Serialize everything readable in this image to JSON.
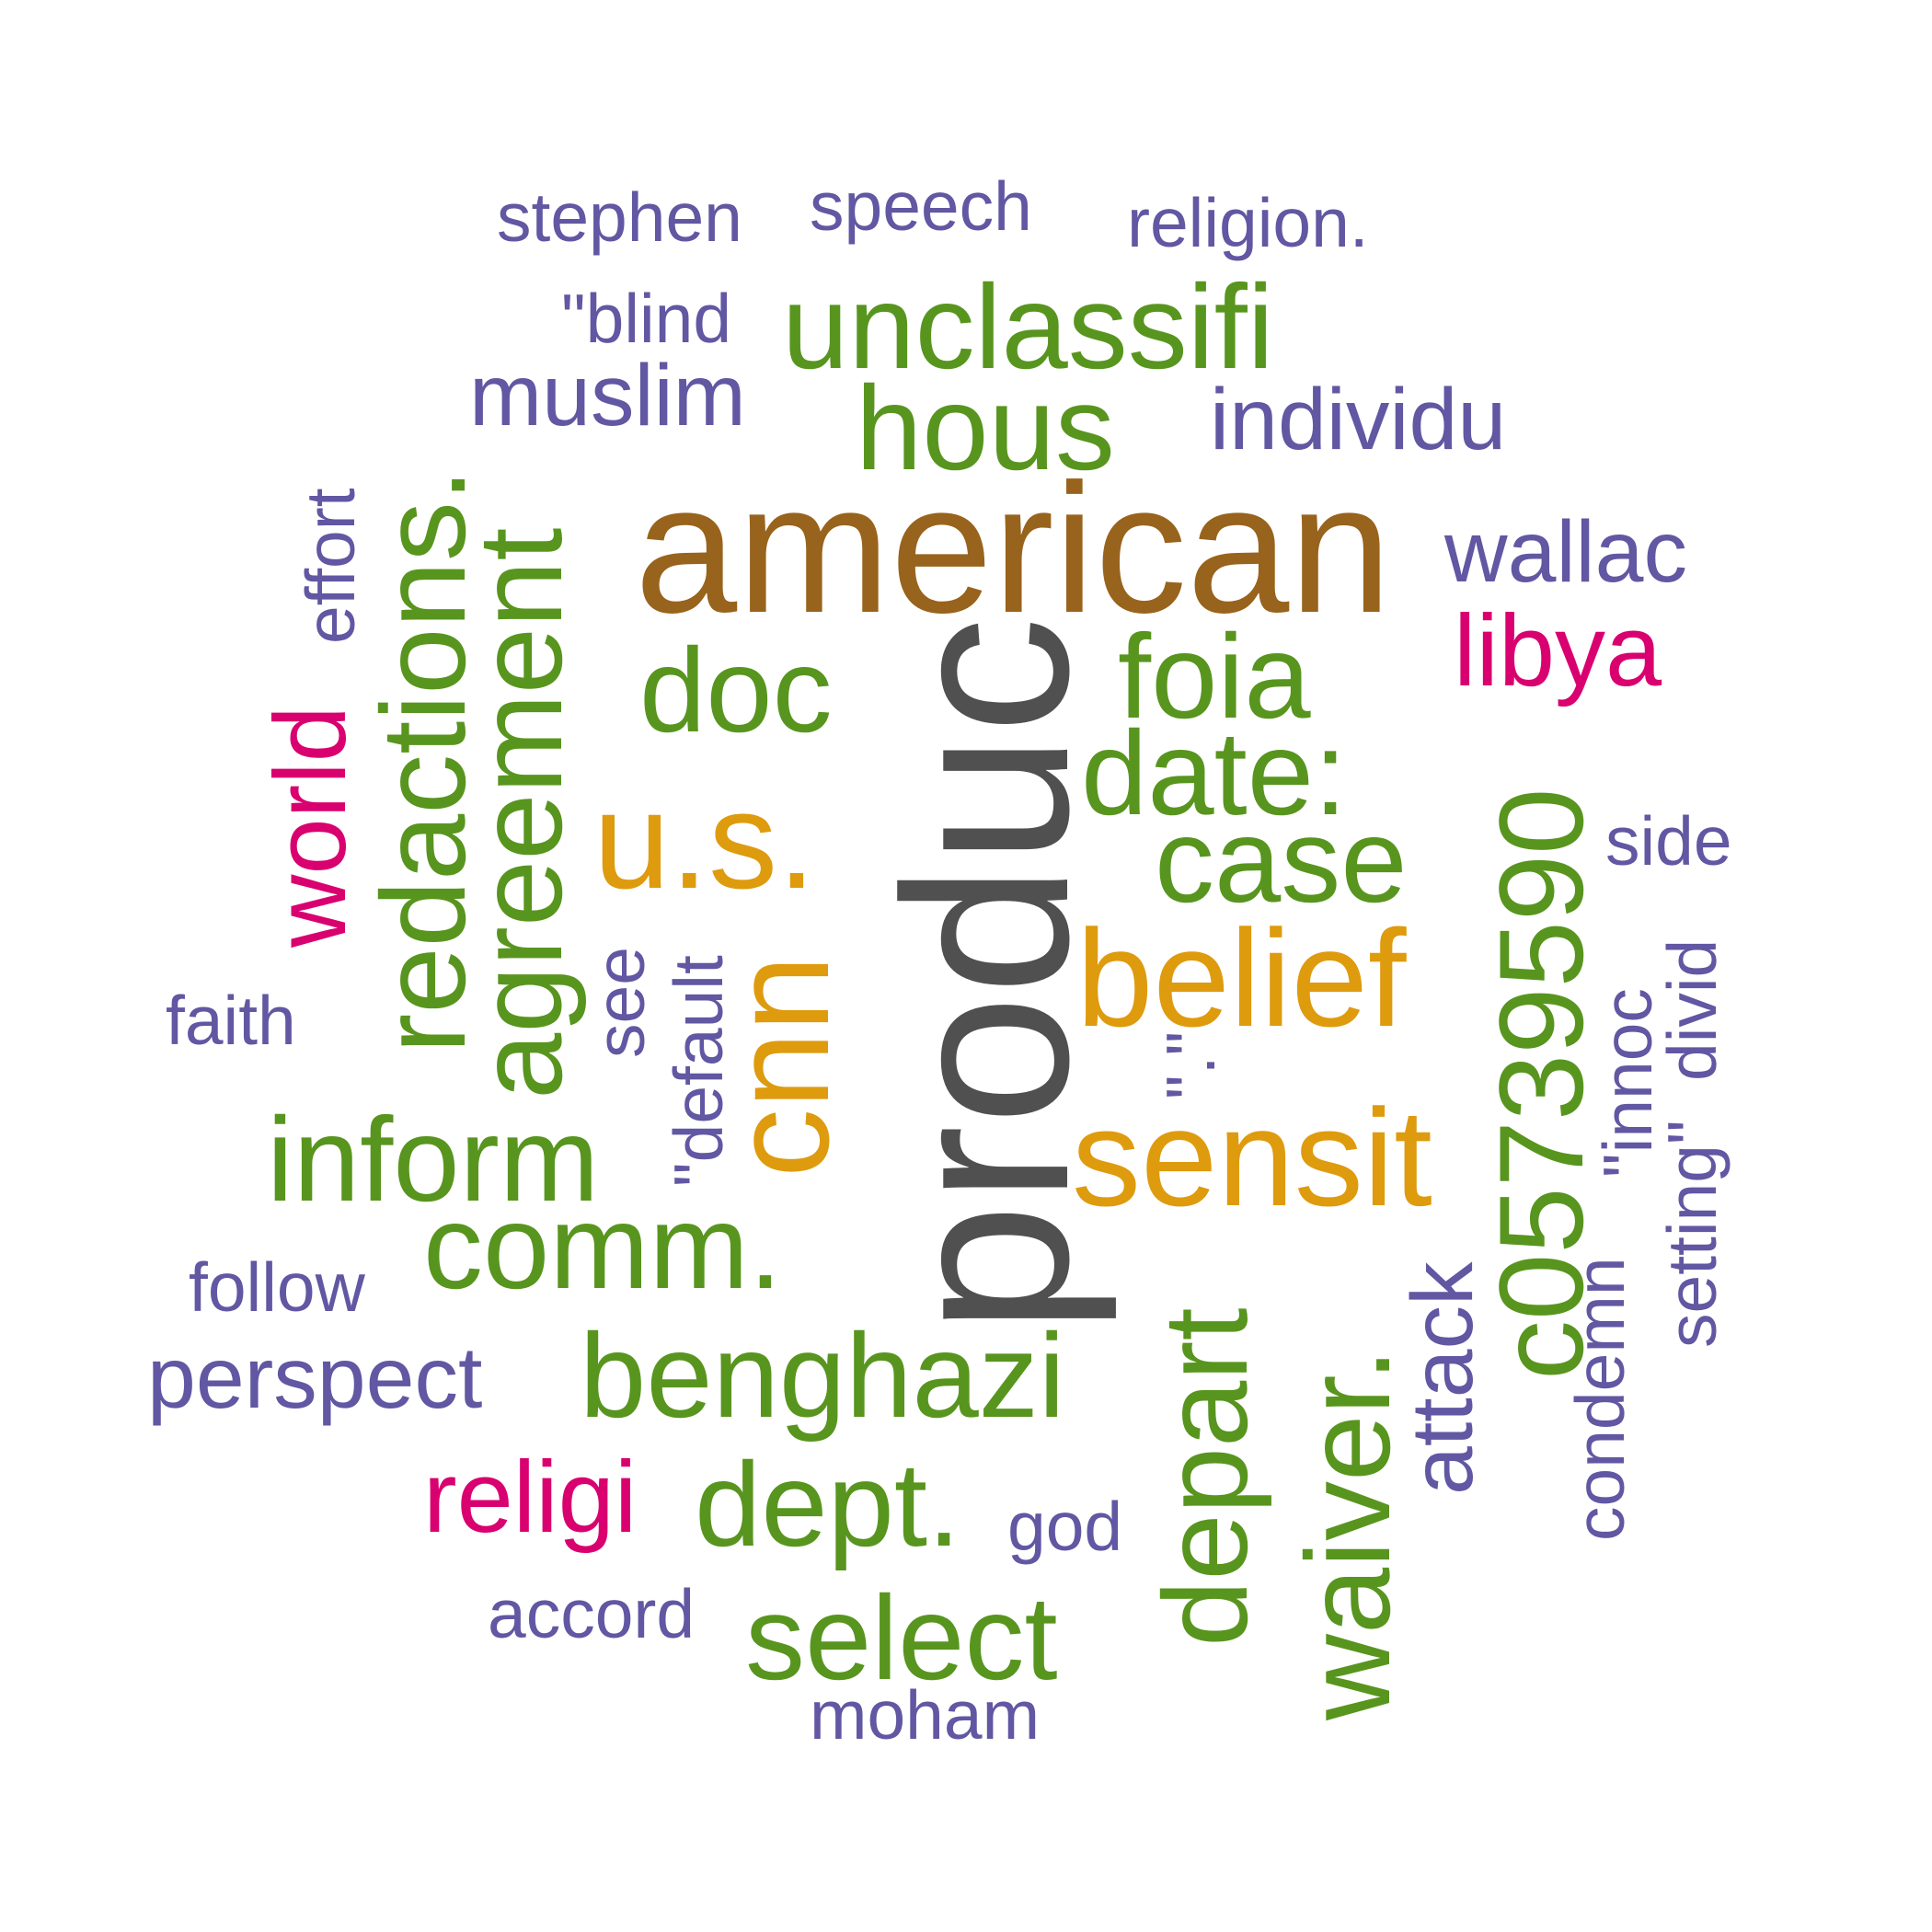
{
  "palette": {
    "gray": "#505050",
    "brown": "#98631c",
    "orange": "#de9b0e",
    "green": "#58951e",
    "purple": "#6157a2",
    "magenta": "#d9006f"
  },
  "words": [
    {
      "text": "produc",
      "color": "gray",
      "weight": 1.0,
      "orientation": "vertical"
    },
    {
      "text": "american",
      "color": "brown",
      "weight": 0.78,
      "orientation": "horizontal"
    },
    {
      "text": "u.s.",
      "color": "orange",
      "weight": 0.5,
      "orientation": "horizontal"
    },
    {
      "text": "cnn",
      "color": "orange",
      "weight": 0.5,
      "orientation": "vertical"
    },
    {
      "text": "belief",
      "color": "orange",
      "weight": 0.5,
      "orientation": "horizontal"
    },
    {
      "text": "sensit",
      "color": "orange",
      "weight": 0.5,
      "orientation": "horizontal"
    },
    {
      "text": "unclassifi",
      "color": "green",
      "weight": 0.4,
      "orientation": "horizontal"
    },
    {
      "text": "hous",
      "color": "green",
      "weight": 0.4,
      "orientation": "horizontal"
    },
    {
      "text": "redactions.",
      "color": "green",
      "weight": 0.4,
      "orientation": "vertical"
    },
    {
      "text": "agreement",
      "color": "green",
      "weight": 0.4,
      "orientation": "vertical"
    },
    {
      "text": "doc",
      "color": "green",
      "weight": 0.4,
      "orientation": "horizontal"
    },
    {
      "text": "foia",
      "color": "green",
      "weight": 0.4,
      "orientation": "horizontal"
    },
    {
      "text": "date:",
      "color": "green",
      "weight": 0.4,
      "orientation": "horizontal"
    },
    {
      "text": "case",
      "color": "green",
      "weight": 0.4,
      "orientation": "horizontal"
    },
    {
      "text": "inform",
      "color": "green",
      "weight": 0.4,
      "orientation": "horizontal"
    },
    {
      "text": "comm.",
      "color": "green",
      "weight": 0.4,
      "orientation": "horizontal"
    },
    {
      "text": "benghazi",
      "color": "green",
      "weight": 0.4,
      "orientation": "horizontal"
    },
    {
      "text": "dept.",
      "color": "green",
      "weight": 0.4,
      "orientation": "horizontal"
    },
    {
      "text": "select",
      "color": "green",
      "weight": 0.4,
      "orientation": "horizontal"
    },
    {
      "text": "depart",
      "color": "green",
      "weight": 0.4,
      "orientation": "vertical"
    },
    {
      "text": "waiver.",
      "color": "green",
      "weight": 0.4,
      "orientation": "vertical"
    },
    {
      "text": "c05739590",
      "color": "green",
      "weight": 0.4,
      "orientation": "vertical"
    },
    {
      "text": "libya",
      "color": "magenta",
      "weight": 0.33,
      "orientation": "horizontal"
    },
    {
      "text": "world",
      "color": "magenta",
      "weight": 0.33,
      "orientation": "vertical"
    },
    {
      "text": "religi",
      "color": "magenta",
      "weight": 0.33,
      "orientation": "horizontal"
    },
    {
      "text": "stephen",
      "color": "purple",
      "weight": 0.25,
      "orientation": "horizontal"
    },
    {
      "text": "speech",
      "color": "purple",
      "weight": 0.25,
      "orientation": "horizontal"
    },
    {
      "text": "religion.",
      "color": "purple",
      "weight": 0.25,
      "orientation": "horizontal"
    },
    {
      "text": "\"blind",
      "color": "purple",
      "weight": 0.25,
      "orientation": "horizontal"
    },
    {
      "text": "muslim",
      "color": "purple",
      "weight": 0.25,
      "orientation": "horizontal"
    },
    {
      "text": "individu",
      "color": "purple",
      "weight": 0.25,
      "orientation": "horizontal"
    },
    {
      "text": "wallac",
      "color": "purple",
      "weight": 0.25,
      "orientation": "horizontal"
    },
    {
      "text": "effort",
      "color": "purple",
      "weight": 0.25,
      "orientation": "vertical"
    },
    {
      "text": "side",
      "color": "purple",
      "weight": 0.25,
      "orientation": "horizontal"
    },
    {
      "text": "faith",
      "color": "purple",
      "weight": 0.25,
      "orientation": "horizontal"
    },
    {
      "text": "see",
      "color": "purple",
      "weight": 0.25,
      "orientation": "vertical"
    },
    {
      "text": "\"default",
      "color": "purple",
      "weight": 0.25,
      "orientation": "vertical"
    },
    {
      "text": "\".\"",
      "color": "purple",
      "weight": 0.25,
      "orientation": "vertical"
    },
    {
      "text": "\"innoc",
      "color": "purple",
      "weight": 0.25,
      "orientation": "vertical"
    },
    {
      "text": "divid",
      "color": "purple",
      "weight": 0.25,
      "orientation": "vertical"
    },
    {
      "text": "setting\"",
      "color": "purple",
      "weight": 0.25,
      "orientation": "vertical"
    },
    {
      "text": "condemn",
      "color": "purple",
      "weight": 0.25,
      "orientation": "vertical"
    },
    {
      "text": "attack",
      "color": "purple",
      "weight": 0.25,
      "orientation": "vertical"
    },
    {
      "text": "follow",
      "color": "purple",
      "weight": 0.25,
      "orientation": "horizontal"
    },
    {
      "text": "perspect",
      "color": "purple",
      "weight": 0.25,
      "orientation": "horizontal"
    },
    {
      "text": "god",
      "color": "purple",
      "weight": 0.25,
      "orientation": "horizontal"
    },
    {
      "text": "accord",
      "color": "purple",
      "weight": 0.25,
      "orientation": "horizontal"
    },
    {
      "text": "moham",
      "color": "purple",
      "weight": 0.25,
      "orientation": "horizontal"
    }
  ]
}
